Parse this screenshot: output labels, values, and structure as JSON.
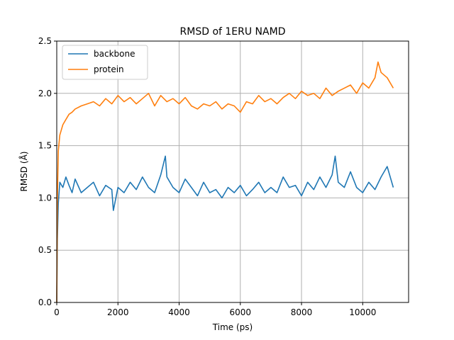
{
  "chart_data": {
    "type": "line",
    "title": "RMSD of 1ERU NAMD",
    "xlabel": "Time (ps)",
    "ylabel": "RMSD (Å)",
    "xlim": [
      0,
      11500
    ],
    "ylim": [
      0.0,
      2.5
    ],
    "xticks": [
      0,
      2000,
      4000,
      6000,
      8000,
      10000
    ],
    "xtick_labels": [
      "0",
      "2000",
      "4000",
      "6000",
      "8000",
      "10000"
    ],
    "yticks": [
      0.0,
      0.5,
      1.0,
      1.5,
      2.0,
      2.5
    ],
    "ytick_labels": [
      "0.0",
      "0.5",
      "1.0",
      "1.5",
      "2.0",
      "2.5"
    ],
    "grid": true,
    "legend_position": "top-left",
    "series": [
      {
        "name": "backbone",
        "color": "#1f77b4",
        "x": [
          0,
          20,
          50,
          100,
          200,
          300,
          400,
          500,
          600,
          800,
          1000,
          1200,
          1400,
          1600,
          1800,
          1850,
          2000,
          2200,
          2400,
          2600,
          2800,
          3000,
          3200,
          3400,
          3550,
          3600,
          3800,
          4000,
          4200,
          4400,
          4600,
          4800,
          5000,
          5200,
          5400,
          5600,
          5800,
          6000,
          6200,
          6400,
          6600,
          6800,
          7000,
          7200,
          7400,
          7600,
          7800,
          8000,
          8200,
          8400,
          8600,
          8800,
          9000,
          9100,
          9200,
          9400,
          9600,
          9800,
          10000,
          10200,
          10400,
          10600,
          10800,
          11000
        ],
        "y": [
          0.0,
          0.6,
          0.95,
          1.15,
          1.1,
          1.2,
          1.12,
          1.05,
          1.18,
          1.05,
          1.1,
          1.15,
          1.02,
          1.12,
          1.08,
          0.88,
          1.1,
          1.05,
          1.15,
          1.08,
          1.2,
          1.1,
          1.05,
          1.22,
          1.4,
          1.2,
          1.1,
          1.05,
          1.18,
          1.1,
          1.02,
          1.15,
          1.05,
          1.08,
          1.0,
          1.1,
          1.05,
          1.12,
          1.02,
          1.08,
          1.15,
          1.05,
          1.1,
          1.05,
          1.2,
          1.1,
          1.12,
          1.02,
          1.15,
          1.08,
          1.2,
          1.1,
          1.22,
          1.4,
          1.15,
          1.1,
          1.25,
          1.1,
          1.05,
          1.15,
          1.08,
          1.2,
          1.3,
          1.1
        ]
      },
      {
        "name": "protein",
        "color": "#ff7f0e",
        "x": [
          0,
          20,
          50,
          100,
          200,
          300,
          400,
          500,
          600,
          800,
          1000,
          1200,
          1400,
          1600,
          1800,
          2000,
          2200,
          2400,
          2600,
          2800,
          3000,
          3200,
          3400,
          3600,
          3800,
          4000,
          4200,
          4400,
          4600,
          4800,
          5000,
          5200,
          5400,
          5600,
          5800,
          6000,
          6200,
          6400,
          6600,
          6800,
          7000,
          7200,
          7400,
          7600,
          7800,
          8000,
          8200,
          8400,
          8600,
          8800,
          9000,
          9200,
          9400,
          9600,
          9800,
          10000,
          10200,
          10400,
          10500,
          10600,
          10800,
          11000
        ],
        "y": [
          0.0,
          1.0,
          1.45,
          1.6,
          1.7,
          1.75,
          1.8,
          1.82,
          1.85,
          1.88,
          1.9,
          1.92,
          1.88,
          1.95,
          1.9,
          1.98,
          1.92,
          1.96,
          1.9,
          1.95,
          2.0,
          1.88,
          1.98,
          1.92,
          1.95,
          1.9,
          1.96,
          1.88,
          1.85,
          1.9,
          1.88,
          1.92,
          1.85,
          1.9,
          1.88,
          1.82,
          1.92,
          1.9,
          1.98,
          1.92,
          1.95,
          1.9,
          1.96,
          2.0,
          1.95,
          2.02,
          1.98,
          2.0,
          1.95,
          2.05,
          1.98,
          2.02,
          2.05,
          2.08,
          2.0,
          2.1,
          2.05,
          2.15,
          2.3,
          2.2,
          2.15,
          2.05
        ]
      }
    ]
  }
}
